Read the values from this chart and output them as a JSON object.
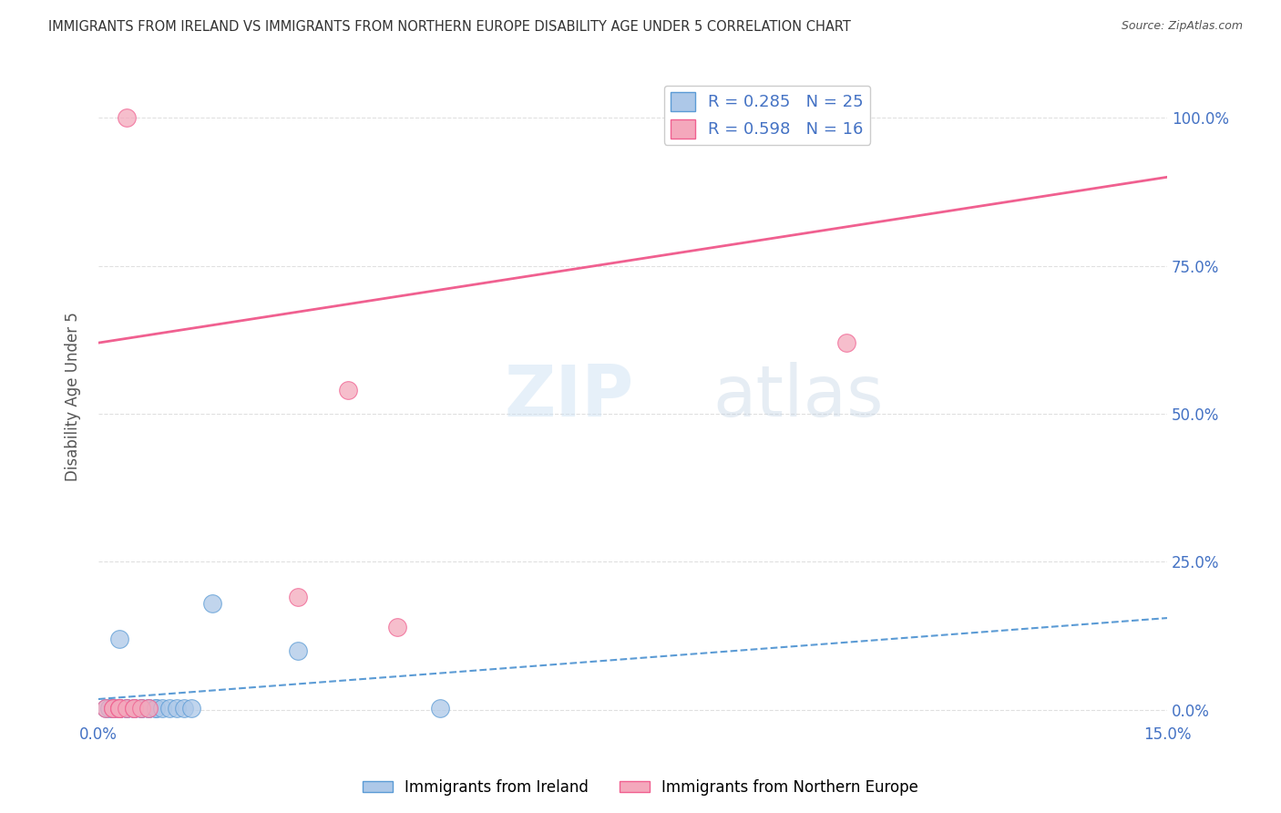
{
  "title": "IMMIGRANTS FROM IRELAND VS IMMIGRANTS FROM NORTHERN EUROPE DISABILITY AGE UNDER 5 CORRELATION CHART",
  "source": "Source: ZipAtlas.com",
  "ylabel": "Disability Age Under 5",
  "xlim": [
    0.0,
    0.15
  ],
  "ylim": [
    -0.02,
    1.08
  ],
  "xticks": [
    0.0,
    0.025,
    0.05,
    0.075,
    0.1,
    0.125,
    0.15
  ],
  "yticks_right": [
    0.0,
    0.25,
    0.5,
    0.75,
    1.0
  ],
  "yticklabels_right": [
    "0.0%",
    "25.0%",
    "50.0%",
    "75.0%",
    "100.0%"
  ],
  "ireland_R": 0.285,
  "ireland_N": 25,
  "northern_R": 0.598,
  "northern_N": 16,
  "ireland_color": "#adc8e8",
  "northern_color": "#f4a8bc",
  "ireland_line_color": "#5b9bd5",
  "northern_line_color": "#f06090",
  "watermark_zip": "ZIP",
  "watermark_atlas": "atlas",
  "ireland_x": [
    0.001,
    0.0015,
    0.002,
    0.002,
    0.003,
    0.003,
    0.003,
    0.004,
    0.004,
    0.005,
    0.005,
    0.006,
    0.006,
    0.007,
    0.007,
    0.008,
    0.008,
    0.009,
    0.01,
    0.011,
    0.012,
    0.013,
    0.016,
    0.028,
    0.048
  ],
  "ireland_y": [
    0.003,
    0.003,
    0.003,
    0.003,
    0.003,
    0.003,
    0.12,
    0.003,
    0.003,
    0.003,
    0.003,
    0.003,
    0.003,
    0.003,
    0.003,
    0.003,
    0.003,
    0.003,
    0.003,
    0.003,
    0.003,
    0.003,
    0.18,
    0.1,
    0.003
  ],
  "northern_x": [
    0.001,
    0.002,
    0.002,
    0.003,
    0.003,
    0.003,
    0.004,
    0.004,
    0.005,
    0.005,
    0.006,
    0.007,
    0.028,
    0.035,
    0.042,
    0.105
  ],
  "northern_y": [
    0.003,
    0.003,
    0.003,
    0.003,
    0.003,
    0.003,
    0.003,
    1.0,
    0.003,
    0.003,
    0.003,
    0.003,
    0.19,
    0.54,
    0.14,
    0.62
  ],
  "ireland_line_x0": 0.0,
  "ireland_line_y0": 0.018,
  "ireland_line_x1": 0.15,
  "ireland_line_y1": 0.155,
  "northern_line_x0": 0.0,
  "northern_line_y0": 0.62,
  "northern_line_x1": 0.15,
  "northern_line_y1": 0.9,
  "background_color": "#ffffff",
  "grid_color": "#e0e0e0"
}
